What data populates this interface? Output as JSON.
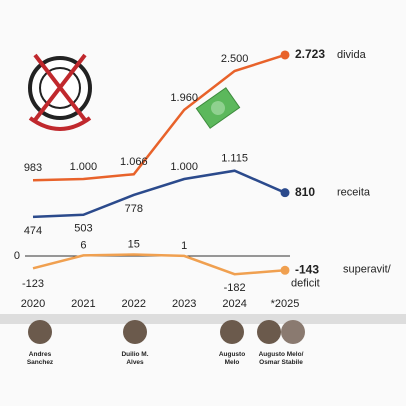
{
  "chart_data": {
    "type": "line",
    "categories": [
      "2020",
      "2021",
      "2022",
      "2023",
      "2024",
      "*2025"
    ],
    "series": [
      {
        "name": "divida",
        "color": "#e8622a",
        "values": [
          983,
          1000,
          1066,
          1960,
          2500,
          2723
        ],
        "value_labels": [
          "983",
          "1.000",
          "1.066",
          "1.960",
          "2.500",
          "2.723"
        ]
      },
      {
        "name": "receita",
        "color": "#2b4a8c",
        "values": [
          474,
          503,
          778,
          1000,
          1115,
          810
        ],
        "value_labels": [
          "474",
          "503",
          "778",
          "1.000",
          "1.115",
          "810"
        ]
      },
      {
        "name": "superavit/ deficit",
        "color": "#f0a050",
        "axis": "y2",
        "values": [
          -123,
          6,
          15,
          1,
          -182,
          -143
        ]
      }
    ],
    "ylim": [
      0,
      3000
    ],
    "y2lim": [
      -300,
      300
    ],
    "y2ticks": [
      0
    ],
    "annotations": [
      "Andres Sanchez",
      "Duilio M. Alves",
      "Augusto Melo",
      "Augusto Melo/ Osmar Stabile"
    ]
  }
}
